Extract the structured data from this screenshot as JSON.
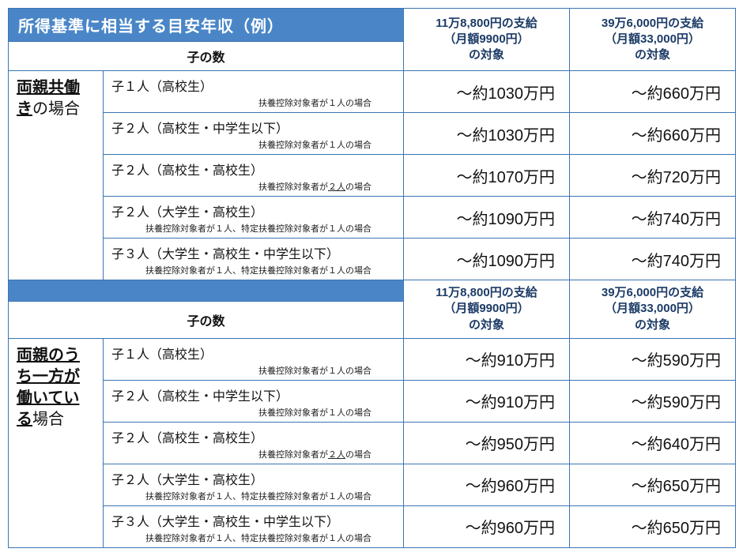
{
  "title": "所得基準に相当する目安年収（例）",
  "payHead1_l1": "11万8,800円の支給",
  "payHead1_l2": "（月額9900円）",
  "payHead1_l3": "の対象",
  "payHead2_l1": "39万6,000円の支給",
  "payHead2_l2": "（月額33,000円）",
  "payHead2_l3": "の対象",
  "childCountLabel": "子の数",
  "sections": [
    {
      "catBold": "両親共働き",
      "catRest": "の場合",
      "rows": [
        {
          "title": "子１人（高校生）",
          "note": "扶養控除対象者が１人の場合",
          "noteU": "",
          "v1": "～約1030万円",
          "v2": "～約660万円"
        },
        {
          "title": "子２人（高校生・中学生以下）",
          "note": "扶養控除対象者が１人の場合",
          "noteU": "",
          "v1": "～約1030万円",
          "v2": "～約660万円"
        },
        {
          "title": "子２人（高校生・高校生）",
          "note": "扶養控除対象者が",
          "noteU": "２人",
          "noteAfter": "の場合",
          "v1": "～約1070万円",
          "v2": "～約720万円"
        },
        {
          "title": "子２人（大学生・高校生）",
          "note": "扶養控除対象者が１人、特定扶養控除対象者が１人の場合",
          "noteU": "",
          "v1": "～約1090万円",
          "v2": "～約740万円"
        },
        {
          "title": "子３人（大学生・高校生・中学生以下）",
          "note": "扶養控除対象者が１人、特定扶養控除対象者が１人の場合",
          "noteU": "",
          "v1": "～約1090万円",
          "v2": "～約740万円"
        }
      ]
    },
    {
      "catBold": "両親のうち一方が働いている",
      "catRest": "場合",
      "rows": [
        {
          "title": "子１人（高校生）",
          "note": "扶養控除対象者が１人の場合",
          "noteU": "",
          "v1": "～約910万円",
          "v2": "～約590万円"
        },
        {
          "title": "子２人（高校生・中学生以下）",
          "note": "扶養控除対象者が１人の場合",
          "noteU": "",
          "v1": "～約910万円",
          "v2": "～約590万円"
        },
        {
          "title": "子２人（高校生・高校生）",
          "note": "扶養控除対象者が",
          "noteU": "２人",
          "noteAfter": "の場合",
          "v1": "～約950万円",
          "v2": "～約640万円"
        },
        {
          "title": "子２人（大学生・高校生）",
          "note": "扶養控除対象者が１人、特定扶養控除対象者が１人の場合",
          "noteU": "",
          "v1": "～約960万円",
          "v2": "～約650万円"
        },
        {
          "title": "子３人（大学生・高校生・中学生以下）",
          "note": "扶養控除対象者が１人、特定扶養控除対象者が１人の場合",
          "noteU": "",
          "v1": "～約960万円",
          "v2": "～約650万円"
        }
      ]
    }
  ]
}
